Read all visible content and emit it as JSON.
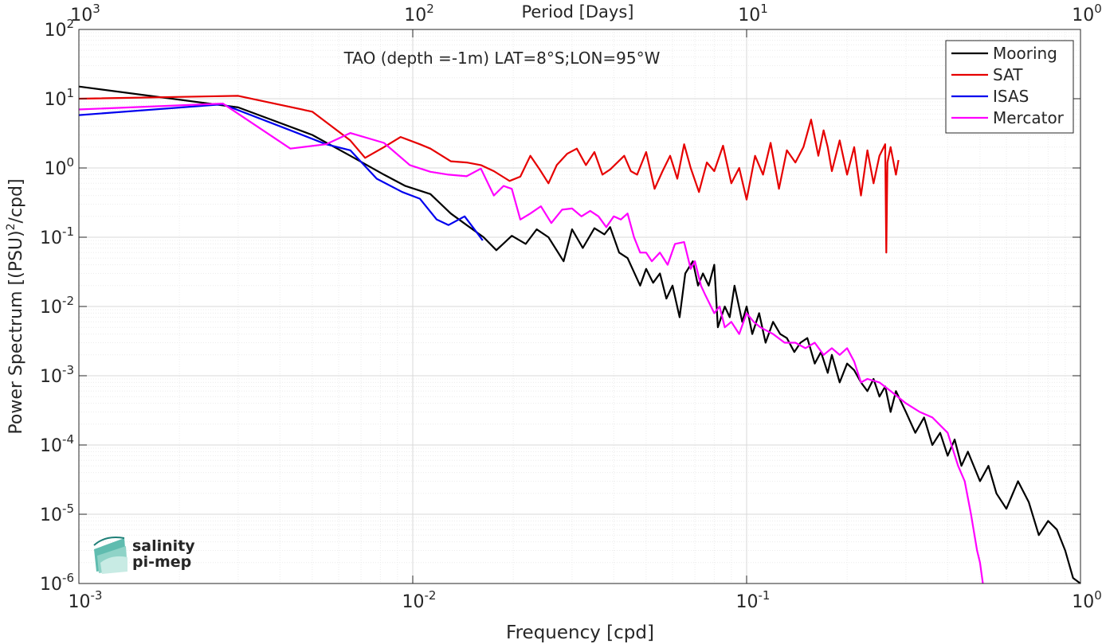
{
  "chart_data": {
    "type": "line",
    "title": "TAO (depth =-1m) LAT=8°S;LON=95°W",
    "xlabel": "Frequency [cpd]",
    "ylabel": "Power Spectrum [(PSU)",
    "ylabel_sup": "2",
    "ylabel_tail": "/cpd]",
    "top_xlabel": "Period [Days]",
    "xscale": "log",
    "yscale": "log",
    "xlim": [
      0.001,
      1
    ],
    "ylim": [
      1e-06,
      100
    ],
    "grid": true,
    "legend_position": "top-right",
    "x_ticks": [
      {
        "value": 0.001,
        "base": "10",
        "exp": "-3"
      },
      {
        "value": 0.01,
        "base": "10",
        "exp": "-2"
      },
      {
        "value": 0.1,
        "base": "10",
        "exp": "-1"
      },
      {
        "value": 1,
        "base": "10",
        "exp": "0"
      }
    ],
    "top_ticks": [
      {
        "value": 0.001,
        "base": "10",
        "exp": "3"
      },
      {
        "value": 0.01,
        "base": "10",
        "exp": "2"
      },
      {
        "value": 0.1,
        "base": "10",
        "exp": "1"
      },
      {
        "value": 1,
        "base": "10",
        "exp": "0"
      }
    ],
    "y_ticks": [
      {
        "value": 100,
        "base": "10",
        "exp": "2"
      },
      {
        "value": 10,
        "base": "10",
        "exp": "1"
      },
      {
        "value": 1,
        "base": "10",
        "exp": "0"
      },
      {
        "value": 0.1,
        "base": "10",
        "exp": "-1"
      },
      {
        "value": 0.01,
        "base": "10",
        "exp": "-2"
      },
      {
        "value": 0.001,
        "base": "10",
        "exp": "-3"
      },
      {
        "value": 0.0001,
        "base": "10",
        "exp": "-4"
      },
      {
        "value": 1e-05,
        "base": "10",
        "exp": "-5"
      },
      {
        "value": 1e-06,
        "base": "10",
        "exp": "-6"
      }
    ],
    "series": [
      {
        "name": "Mooring",
        "color": "#000000",
        "x": [
          0.001,
          0.003,
          0.005,
          0.0065,
          0.0082,
          0.0095,
          0.0113,
          0.013,
          0.0145,
          0.0163,
          0.0178,
          0.0198,
          0.0218,
          0.0235,
          0.0255,
          0.0283,
          0.03,
          0.0323,
          0.035,
          0.0375,
          0.039,
          0.0415,
          0.044,
          0.048,
          0.05,
          0.0525,
          0.055,
          0.0575,
          0.06,
          0.063,
          0.0655,
          0.069,
          0.0715,
          0.074,
          0.077,
          0.08,
          0.082,
          0.086,
          0.089,
          0.092,
          0.097,
          0.1,
          0.104,
          0.109,
          0.114,
          0.12,
          0.126,
          0.132,
          0.139,
          0.145,
          0.152,
          0.16,
          0.167,
          0.175,
          0.18,
          0.19,
          0.2,
          0.21,
          0.22,
          0.23,
          0.24,
          0.25,
          0.26,
          0.27,
          0.28,
          0.3,
          0.32,
          0.34,
          0.36,
          0.38,
          0.4,
          0.42,
          0.44,
          0.46,
          0.5,
          0.53,
          0.56,
          0.6,
          0.65,
          0.7,
          0.75,
          0.8,
          0.85,
          0.9,
          0.95,
          1.0
        ],
        "y": [
          15,
          7.5,
          3,
          1.5,
          0.8,
          0.55,
          0.42,
          0.22,
          0.15,
          0.1,
          0.065,
          0.105,
          0.08,
          0.13,
          0.1,
          0.045,
          0.13,
          0.07,
          0.135,
          0.11,
          0.14,
          0.06,
          0.05,
          0.02,
          0.035,
          0.022,
          0.03,
          0.013,
          0.02,
          0.007,
          0.03,
          0.045,
          0.02,
          0.03,
          0.02,
          0.04,
          0.005,
          0.01,
          0.007,
          0.02,
          0.006,
          0.01,
          0.004,
          0.008,
          0.003,
          0.006,
          0.004,
          0.0035,
          0.0022,
          0.003,
          0.0035,
          0.0015,
          0.0022,
          0.0011,
          0.002,
          0.0008,
          0.0015,
          0.0012,
          0.0008,
          0.0006,
          0.0009,
          0.0005,
          0.0007,
          0.0003,
          0.0006,
          0.0003,
          0.00015,
          0.00025,
          0.0001,
          0.00015,
          7e-05,
          0.00012,
          5e-05,
          8e-05,
          3e-05,
          5e-05,
          2e-05,
          1.2e-05,
          3e-05,
          1.5e-05,
          5e-06,
          8e-06,
          6e-06,
          3e-06,
          1.2e-06,
          1e-06
        ]
      },
      {
        "name": "SAT",
        "color": "#e60000",
        "x": [
          0.001,
          0.003,
          0.005,
          0.0065,
          0.0072,
          0.0082,
          0.0092,
          0.0105,
          0.0113,
          0.013,
          0.0145,
          0.016,
          0.0175,
          0.0195,
          0.021,
          0.0225,
          0.024,
          0.0255,
          0.027,
          0.029,
          0.031,
          0.033,
          0.035,
          0.037,
          0.039,
          0.041,
          0.043,
          0.045,
          0.047,
          0.05,
          0.053,
          0.056,
          0.059,
          0.062,
          0.065,
          0.068,
          0.072,
          0.076,
          0.08,
          0.085,
          0.09,
          0.095,
          0.1,
          0.106,
          0.112,
          0.118,
          0.125,
          0.132,
          0.14,
          0.148,
          0.156,
          0.164,
          0.17,
          0.175,
          0.18,
          0.19,
          0.2,
          0.21,
          0.22,
          0.23,
          0.24,
          0.25,
          0.26,
          0.262,
          0.264,
          0.27,
          0.28,
          0.285
        ],
        "y": [
          10,
          11,
          6.5,
          2.5,
          1.4,
          2,
          2.8,
          2.2,
          1.9,
          1.25,
          1.2,
          1.1,
          0.9,
          0.65,
          0.75,
          1.5,
          0.95,
          0.6,
          1.1,
          1.6,
          1.9,
          1.1,
          1.7,
          0.8,
          0.95,
          1.2,
          1.5,
          0.9,
          0.8,
          1.7,
          0.5,
          0.9,
          1.5,
          0.7,
          2.2,
          1.0,
          0.45,
          1.2,
          0.9,
          2.1,
          0.6,
          1.0,
          0.35,
          1.5,
          0.8,
          2.3,
          0.5,
          1.8,
          1.2,
          2.0,
          5.0,
          1.5,
          3.5,
          2.0,
          0.9,
          2.5,
          0.8,
          2.0,
          0.4,
          1.8,
          0.6,
          1.5,
          2.2,
          0.06,
          1.2,
          2.0,
          0.8,
          1.3
        ]
      },
      {
        "name": "ISAS",
        "color": "#0000ee",
        "x": [
          0.001,
          0.0027,
          0.0043,
          0.0055,
          0.0065,
          0.0078,
          0.0093,
          0.0105,
          0.0118,
          0.0128,
          0.0143,
          0.0153,
          0.0162
        ],
        "y": [
          5.8,
          8.3,
          3.5,
          2.2,
          1.8,
          0.7,
          0.45,
          0.36,
          0.18,
          0.15,
          0.2,
          0.13,
          0.09
        ]
      },
      {
        "name": "Mercator",
        "color": "#ff00ff",
        "x": [
          0.001,
          0.0027,
          0.0043,
          0.0055,
          0.0065,
          0.0082,
          0.0098,
          0.0113,
          0.0128,
          0.0145,
          0.016,
          0.0175,
          0.0187,
          0.0198,
          0.021,
          0.0225,
          0.0242,
          0.026,
          0.028,
          0.03,
          0.032,
          0.034,
          0.036,
          0.038,
          0.04,
          0.042,
          0.044,
          0.046,
          0.048,
          0.05,
          0.052,
          0.055,
          0.058,
          0.061,
          0.065,
          0.068,
          0.07,
          0.073,
          0.075,
          0.08,
          0.083,
          0.086,
          0.09,
          0.095,
          0.1,
          0.105,
          0.11,
          0.12,
          0.13,
          0.14,
          0.15,
          0.16,
          0.17,
          0.18,
          0.19,
          0.2,
          0.21,
          0.22,
          0.23,
          0.25,
          0.27,
          0.3,
          0.33,
          0.36,
          0.4,
          0.43,
          0.45,
          0.47,
          0.49,
          0.5,
          0.51
        ],
        "y": [
          7,
          8.5,
          1.9,
          2.2,
          3.2,
          2.3,
          1.1,
          0.88,
          0.8,
          0.76,
          0.98,
          0.4,
          0.55,
          0.5,
          0.18,
          0.22,
          0.28,
          0.16,
          0.25,
          0.26,
          0.2,
          0.24,
          0.2,
          0.14,
          0.2,
          0.18,
          0.22,
          0.1,
          0.06,
          0.06,
          0.045,
          0.06,
          0.04,
          0.08,
          0.085,
          0.035,
          0.045,
          0.02,
          0.015,
          0.008,
          0.01,
          0.005,
          0.006,
          0.004,
          0.008,
          0.006,
          0.005,
          0.004,
          0.003,
          0.003,
          0.0025,
          0.003,
          0.002,
          0.0025,
          0.002,
          0.0025,
          0.0016,
          0.0008,
          0.0009,
          0.0008,
          0.0006,
          0.0004,
          0.0003,
          0.00025,
          0.00015,
          5e-05,
          3e-05,
          1e-05,
          3e-06,
          2e-06,
          1e-06
        ]
      }
    ]
  },
  "logo": {
    "line1": "salinity",
    "line2": "pi-mep"
  }
}
